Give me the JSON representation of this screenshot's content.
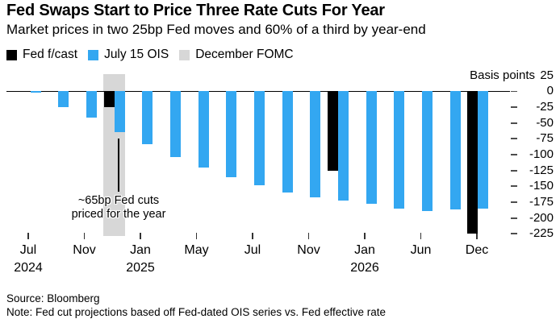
{
  "title": "Fed Swaps Start to Price Three Rate Cuts For Year",
  "subtitle": "Market prices in two 25bp Fed moves and 60% of a third by year-end",
  "legend": [
    {
      "label": "Fed f/cast",
      "color": "#000000"
    },
    {
      "label": "July 15 OIS",
      "color": "#33a7f1"
    },
    {
      "label": "December FOMC",
      "color": "#d7d7d7"
    }
  ],
  "axis": {
    "unit_label": "Basis points"
  },
  "annotation": {
    "line1": "~65bp Fed cuts",
    "line2": "priced for the year"
  },
  "footer": {
    "source": "Source: Bloomberg",
    "note": "Note: Fed cut projections based off Fed-dated OIS series vs. Fed effective rate"
  },
  "chart_data": {
    "type": "bar",
    "title": "Fed Swaps Start to Price Three Rate Cuts For Year",
    "subtitle": "Market prices in two 25bp Fed moves and 60% of a third by year-end",
    "unit": "basis points",
    "ylabel": "Basis points",
    "ylim": [
      -225,
      25
    ],
    "grid": false,
    "legend_position": "top",
    "y_ticks": [
      25,
      0,
      -25,
      -50,
      -75,
      -100,
      -125,
      -150,
      -175,
      -200,
      -225
    ],
    "x_ticks": [
      {
        "month": "Jul",
        "year": "2024"
      },
      {
        "month": "Nov",
        "year": ""
      },
      {
        "month": "Jan",
        "year": "2025"
      },
      {
        "month": "May",
        "year": ""
      },
      {
        "month": "Jul",
        "year": ""
      },
      {
        "month": "Nov",
        "year": ""
      },
      {
        "month": "Jan",
        "year": "2026"
      },
      {
        "month": "Jun",
        "year": ""
      },
      {
        "month": "Dec",
        "year": ""
      }
    ],
    "series": [
      {
        "name": "July 15 OIS",
        "type": "bar",
        "color": "#33a7f1",
        "values": [
          -2,
          -25,
          -42,
          -64,
          -84,
          -104,
          -121,
          -136,
          -148,
          -160,
          -168,
          -173,
          -178,
          -185,
          -189,
          -187,
          -185
        ]
      },
      {
        "name": "Fed f/cast",
        "type": "bar",
        "color": "#000000",
        "points": [
          {
            "slot": 3,
            "tick_label": "Dec",
            "value": -25
          },
          {
            "slot": 11,
            "tick_label": "Dec",
            "value": -125
          },
          {
            "slot": 16,
            "tick_label": "Dec",
            "value": -225
          }
        ]
      },
      {
        "name": "December FOMC",
        "type": "highlight-band",
        "color": "#d7d7d7",
        "slot": 3
      }
    ],
    "annotation": "~65bp Fed cuts priced for the year"
  }
}
